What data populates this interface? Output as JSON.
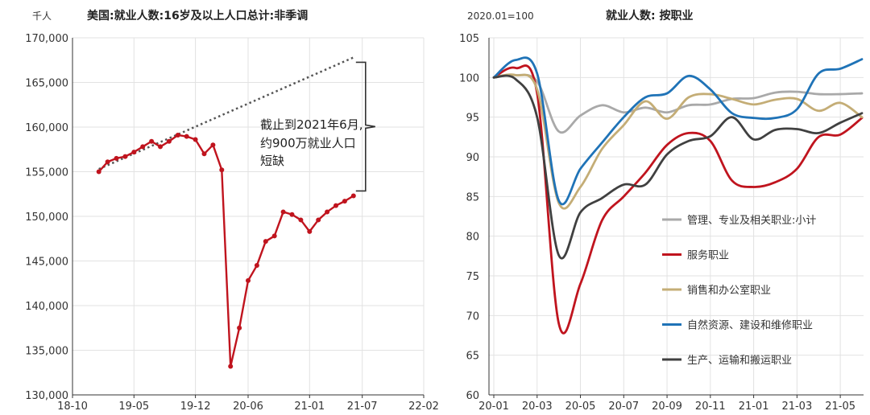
{
  "colors": {
    "left_line": "#c0141e",
    "trend": "#555555",
    "bracket": "#333333",
    "axis": "#333333",
    "grid": "#e2e2e2"
  },
  "chart_data": [
    {
      "type": "line",
      "title": "美国:就业人数:16岁及以上人口总计:非季调",
      "unit": "千人",
      "ylim": [
        130000,
        170000
      ],
      "y_ticks": [
        130000,
        135000,
        140000,
        145000,
        150000,
        155000,
        160000,
        165000,
        170000
      ],
      "y_tick_labels": [
        "130,000",
        "135,000",
        "140,000",
        "145,000",
        "150,000",
        "155,000",
        "160,000",
        "165,000",
        "170,000"
      ],
      "xlim": [
        "2018-10",
        "2022-02"
      ],
      "x_ticks": [
        "2018-10",
        "2019-05",
        "2019-12",
        "2020-06",
        "2021-01",
        "2021-07",
        "2022-02"
      ],
      "x_tick_labels": [
        "18-10",
        "19-05",
        "19-12",
        "20-06",
        "21-01",
        "21-07",
        "22-02"
      ],
      "grid": true,
      "series": [
        {
          "x": [
            "2019-01",
            "2019-02",
            "2019-03",
            "2019-04",
            "2019-05",
            "2019-06",
            "2019-07",
            "2019-08",
            "2019-09",
            "2019-10",
            "2019-11",
            "2019-12",
            "2020-01",
            "2020-02",
            "2020-03",
            "2020-04",
            "2020-05",
            "2020-06",
            "2020-07",
            "2020-08",
            "2020-09",
            "2020-10",
            "2020-11",
            "2020-12",
            "2021-01",
            "2021-02",
            "2021-03",
            "2021-04",
            "2021-05",
            "2021-06"
          ],
          "values": [
            155000,
            156100,
            156500,
            156700,
            157200,
            157800,
            158400,
            157800,
            158400,
            159100,
            158950,
            158600,
            157000,
            158000,
            155200,
            133200,
            137500,
            142800,
            144500,
            147200,
            147800,
            150500,
            150200,
            149600,
            148300,
            149600,
            150500,
            151200,
            151700,
            152300
          ]
        }
      ],
      "trend": {
        "x": [
          "2019-01",
          "2021-06"
        ],
        "values": [
          155300,
          167800
        ]
      },
      "annotation": [
        "截止到2021年6月,",
        "约900万就业人口",
        "短缺"
      ]
    },
    {
      "type": "line",
      "title": "就业人数: 按职业",
      "unit": "2020.01=100",
      "ylim": [
        60,
        105
      ],
      "y_ticks": [
        60,
        65,
        70,
        75,
        80,
        85,
        90,
        95,
        100,
        105
      ],
      "xlim": [
        "2020-01",
        "2021-06"
      ],
      "x_ticks": [
        "2020-01",
        "2020-03",
        "2020-05",
        "2020-07",
        "2020-09",
        "2020-11",
        "2021-01",
        "2021-03",
        "2021-05"
      ],
      "x_tick_labels": [
        "20-01",
        "20-03",
        "20-05",
        "20-07",
        "20-09",
        "20-11",
        "21-01",
        "21-03",
        "21-05"
      ],
      "grid": true,
      "x": [
        "2020-01",
        "2020-02",
        "2020-03",
        "2020-04",
        "2020-05",
        "2020-06",
        "2020-07",
        "2020-08",
        "2020-09",
        "2020-10",
        "2020-11",
        "2020-12",
        "2021-01",
        "2021-02",
        "2021-03",
        "2021-04",
        "2021-05",
        "2021-06"
      ],
      "series": [
        {
          "name": "管理、专业及相关职业:小计",
          "color": "#a9a9a9",
          "values": [
            100,
            100.3,
            99.5,
            93.2,
            95.2,
            96.5,
            95.6,
            96.2,
            95.6,
            96.5,
            96.6,
            97.3,
            97.4,
            98.1,
            98.2,
            97.9,
            97.9,
            98.0
          ]
        },
        {
          "name": "服务职业",
          "color": "#c0141e",
          "values": [
            100,
            101.2,
            98.0,
            69.0,
            74.0,
            82.0,
            85.0,
            88.0,
            91.5,
            93.0,
            92.0,
            87.0,
            86.2,
            86.8,
            88.5,
            92.5,
            92.8,
            94.9
          ]
        },
        {
          "name": "销售和办公室职业",
          "color": "#c4ad76",
          "values": [
            100,
            100.3,
            98.5,
            84.2,
            86.2,
            91.0,
            94.0,
            97.0,
            94.8,
            97.5,
            97.9,
            97.3,
            96.6,
            97.2,
            97.3,
            95.8,
            96.8,
            95.0
          ]
        },
        {
          "name": "自然资源、建设和维修职业",
          "color": "#1f73b7",
          "values": [
            100,
            102.2,
            100.5,
            84.5,
            88.5,
            91.8,
            95.0,
            97.5,
            98.0,
            100.2,
            98.5,
            95.5,
            94.9,
            94.9,
            96.0,
            100.5,
            101.1,
            102.3
          ]
        },
        {
          "name": "生产、运输和搬运职业",
          "color": "#404040",
          "values": [
            100,
            99.8,
            95.0,
            77.6,
            83.0,
            84.8,
            86.5,
            86.5,
            90.3,
            92.0,
            92.6,
            95.0,
            92.2,
            93.4,
            93.5,
            93.0,
            94.3,
            95.5
          ]
        }
      ]
    }
  ]
}
